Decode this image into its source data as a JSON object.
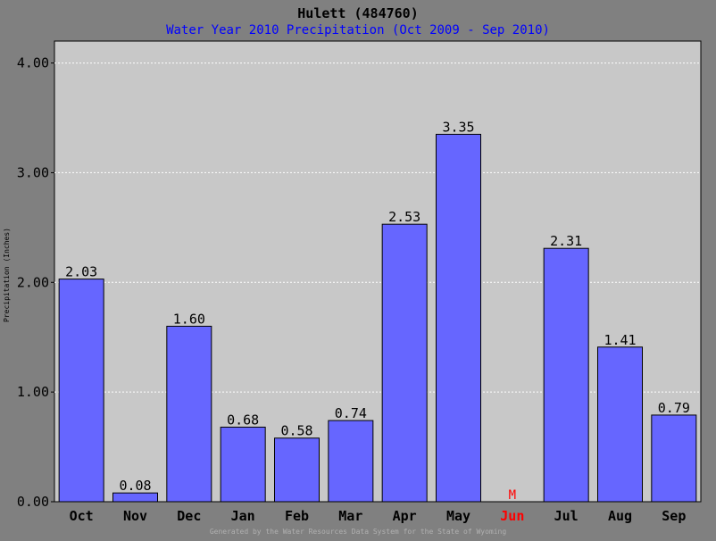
{
  "chart_data": {
    "type": "bar",
    "title": "Hulett (484760)",
    "subtitle": "Water Year 2010 Precipitation (Oct 2009 - Sep 2010)",
    "ylabel": "Precipitation (Inches)",
    "xlabel": "",
    "footer": "Generated by the Water Resources Data System for the State of Wyoming",
    "categories": [
      "Oct",
      "Nov",
      "Dec",
      "Jan",
      "Feb",
      "Mar",
      "Apr",
      "May",
      "Jun",
      "Jul",
      "Aug",
      "Sep"
    ],
    "values": [
      2.03,
      0.08,
      1.6,
      0.68,
      0.58,
      0.74,
      2.53,
      3.35,
      null,
      2.31,
      1.41,
      0.79
    ],
    "value_labels": [
      "2.03",
      "0.08",
      "1.60",
      "0.68",
      "0.58",
      "0.74",
      "2.53",
      "3.35",
      "M",
      "2.31",
      "1.41",
      "0.79"
    ],
    "missing_categories": [
      "Jun"
    ],
    "yticks": [
      "0.00",
      "1.00",
      "2.00",
      "3.00",
      "4.00"
    ],
    "ylim": [
      0,
      4.2
    ],
    "grid": true,
    "colors": {
      "background": "#808080",
      "plot_area": "#c8c8c8",
      "bar": "#6666ff",
      "title": "#000000",
      "subtitle": "#0000ff",
      "missing": "#ff0000",
      "footer": "#b0b0b0"
    }
  }
}
